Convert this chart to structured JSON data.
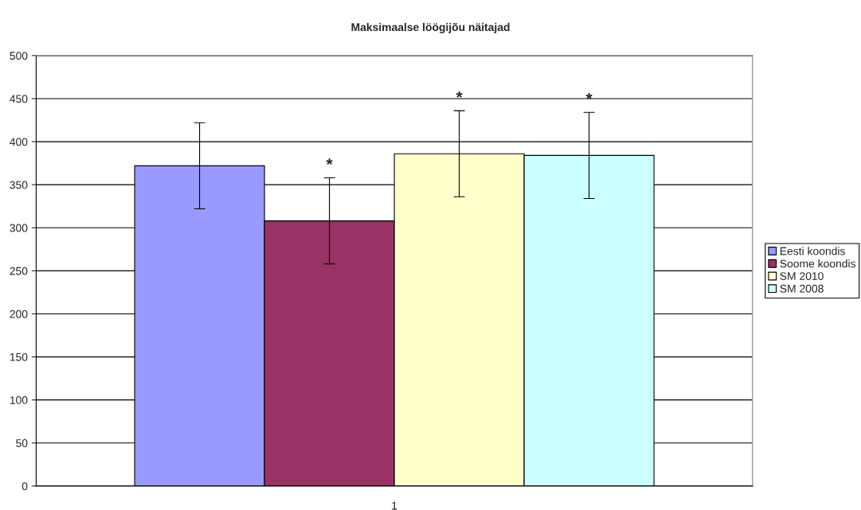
{
  "chart_data": {
    "type": "bar",
    "title": "Maksimaalse löögijõu näitajad",
    "categories": [
      "1"
    ],
    "series": [
      {
        "name": "Eesti koondis",
        "color": "#9999ff",
        "values": [
          372
        ],
        "errors": [
          50
        ]
      },
      {
        "name": "Soome koondis",
        "color": "#993366",
        "values": [
          308
        ],
        "errors": [
          50
        ]
      },
      {
        "name": "SM 2010",
        "color": "#ffffcc",
        "values": [
          386
        ],
        "errors": [
          50
        ]
      },
      {
        "name": "SM 2008",
        "color": "#ccffff",
        "values": [
          384
        ],
        "errors": [
          50
        ]
      }
    ],
    "annotations": [
      "*",
      "*",
      "*"
    ],
    "ylim": [
      0,
      500
    ],
    "yticks": [
      0,
      50,
      100,
      150,
      200,
      250,
      300,
      350,
      400,
      450,
      500
    ],
    "grid": "y",
    "legend": "right"
  }
}
